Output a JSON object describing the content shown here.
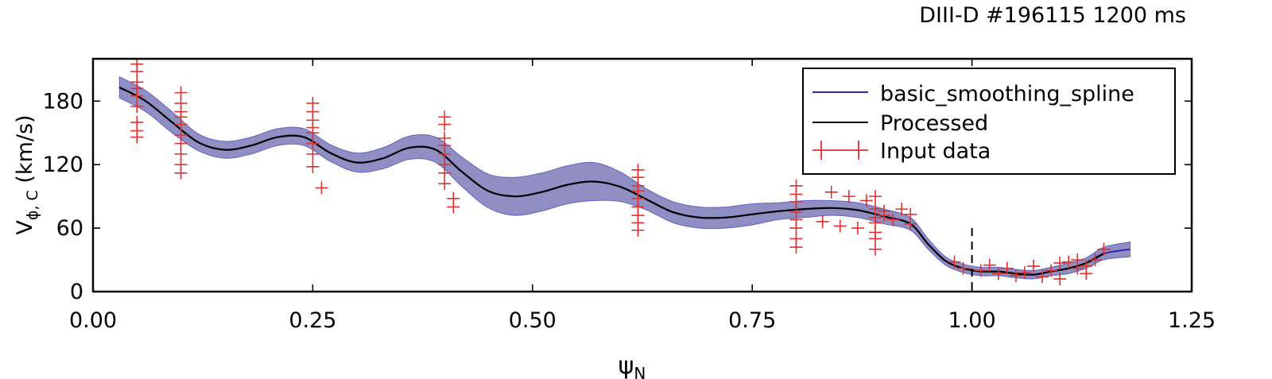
{
  "chart_data": {
    "type": "line",
    "title": "DIII-D #196115 1200 ms",
    "xlabel": "ψ",
    "xlabel_sub": "N",
    "ylabel": "V",
    "ylabel_sub": "ϕ, C",
    "ylabel_unit": " (km/s)",
    "xlim": [
      0.0,
      1.25
    ],
    "ylim": [
      0,
      220
    ],
    "xticks": [
      "0.00",
      "0.25",
      "0.50",
      "0.75",
      "1.00",
      "1.25"
    ],
    "yticks": [
      "0",
      "60",
      "120",
      "180"
    ],
    "grid": false,
    "legend_position": "top-right",
    "vline_x": 1.0,
    "colors": {
      "spline": "#2b2bb0",
      "band": "#7b7bb8",
      "processed": "#000000",
      "data": "#e03030"
    },
    "series": [
      {
        "name": "basic_smoothing_spline",
        "x": [
          0.03,
          0.06,
          0.09,
          0.12,
          0.15,
          0.18,
          0.21,
          0.24,
          0.27,
          0.3,
          0.33,
          0.36,
          0.39,
          0.42,
          0.45,
          0.48,
          0.51,
          0.54,
          0.57,
          0.6,
          0.63,
          0.66,
          0.69,
          0.72,
          0.75,
          0.78,
          0.81,
          0.84,
          0.87,
          0.9,
          0.93,
          0.95,
          0.97,
          0.99,
          1.01,
          1.03,
          1.05,
          1.07,
          1.09,
          1.11,
          1.13,
          1.15,
          1.18
        ],
        "y": [
          193,
          180,
          160,
          141,
          134,
          138,
          146,
          146,
          131,
          122,
          126,
          136,
          134,
          113,
          95,
          90,
          94,
          101,
          104,
          99,
          87,
          75,
          70,
          70,
          73,
          76,
          78,
          79,
          77,
          71,
          64,
          45,
          29,
          22,
          19,
          19,
          17,
          16,
          19,
          22,
          27,
          36,
          40
        ],
        "band": [
          10,
          10,
          10,
          8,
          8,
          8,
          8,
          8,
          8,
          9,
          10,
          11,
          12,
          14,
          16,
          18,
          18,
          18,
          18,
          14,
          10,
          10,
          10,
          10,
          10,
          8,
          8,
          7,
          7,
          7,
          6,
          5,
          4,
          4,
          4,
          4,
          4,
          4,
          4,
          5,
          5,
          6,
          7
        ]
      },
      {
        "name": "Processed",
        "x": [
          0.03,
          0.06,
          0.09,
          0.12,
          0.15,
          0.18,
          0.21,
          0.24,
          0.27,
          0.3,
          0.33,
          0.36,
          0.39,
          0.42,
          0.45,
          0.48,
          0.51,
          0.54,
          0.57,
          0.6,
          0.63,
          0.66,
          0.69,
          0.72,
          0.75,
          0.78,
          0.81,
          0.84,
          0.87,
          0.9,
          0.93,
          0.95,
          0.97,
          0.99,
          1.01,
          1.03,
          1.05,
          1.07,
          1.09,
          1.11,
          1.13,
          1.15
        ],
        "y": [
          193,
          180,
          160,
          141,
          134,
          138,
          146,
          146,
          131,
          122,
          126,
          136,
          134,
          113,
          95,
          90,
          94,
          101,
          104,
          99,
          87,
          75,
          70,
          70,
          73,
          76,
          78,
          79,
          77,
          71,
          64,
          45,
          29,
          22,
          19,
          19,
          17,
          16,
          19,
          22,
          27,
          36
        ]
      },
      {
        "name": "Input data",
        "points": [
          [
            0.05,
            215
          ],
          [
            0.05,
            208
          ],
          [
            0.05,
            198
          ],
          [
            0.05,
            192
          ],
          [
            0.05,
            185
          ],
          [
            0.05,
            175
          ],
          [
            0.05,
            160
          ],
          [
            0.05,
            152
          ],
          [
            0.05,
            146
          ],
          [
            0.1,
            188
          ],
          [
            0.1,
            178
          ],
          [
            0.1,
            170
          ],
          [
            0.1,
            165
          ],
          [
            0.1,
            158
          ],
          [
            0.1,
            148
          ],
          [
            0.1,
            140
          ],
          [
            0.1,
            130
          ],
          [
            0.1,
            120
          ],
          [
            0.1,
            112
          ],
          [
            0.25,
            178
          ],
          [
            0.25,
            170
          ],
          [
            0.25,
            162
          ],
          [
            0.25,
            155
          ],
          [
            0.25,
            150
          ],
          [
            0.25,
            140
          ],
          [
            0.25,
            130
          ],
          [
            0.25,
            118
          ],
          [
            0.26,
            98
          ],
          [
            0.4,
            165
          ],
          [
            0.4,
            158
          ],
          [
            0.4,
            145
          ],
          [
            0.4,
            138
          ],
          [
            0.4,
            130
          ],
          [
            0.4,
            120
          ],
          [
            0.4,
            112
          ],
          [
            0.4,
            102
          ],
          [
            0.41,
            88
          ],
          [
            0.41,
            80
          ],
          [
            0.62,
            115
          ],
          [
            0.62,
            108
          ],
          [
            0.62,
            100
          ],
          [
            0.62,
            95
          ],
          [
            0.62,
            88
          ],
          [
            0.62,
            80
          ],
          [
            0.62,
            72
          ],
          [
            0.62,
            65
          ],
          [
            0.62,
            58
          ],
          [
            0.8,
            100
          ],
          [
            0.8,
            92
          ],
          [
            0.8,
            85
          ],
          [
            0.8,
            75
          ],
          [
            0.8,
            68
          ],
          [
            0.8,
            60
          ],
          [
            0.8,
            50
          ],
          [
            0.8,
            42
          ],
          [
            0.84,
            94
          ],
          [
            0.86,
            90
          ],
          [
            0.88,
            86
          ],
          [
            0.83,
            66
          ],
          [
            0.85,
            62
          ],
          [
            0.87,
            60
          ],
          [
            0.89,
            56
          ],
          [
            0.89,
            90
          ],
          [
            0.89,
            78
          ],
          [
            0.89,
            70
          ],
          [
            0.89,
            65
          ],
          [
            0.89,
            50
          ],
          [
            0.89,
            40
          ],
          [
            0.9,
            76
          ],
          [
            0.9,
            72
          ],
          [
            0.91,
            68
          ],
          [
            0.92,
            78
          ],
          [
            0.93,
            73
          ],
          [
            0.93,
            64
          ],
          [
            0.98,
            28
          ],
          [
            0.99,
            22
          ],
          [
            1.01,
            20
          ],
          [
            1.02,
            25
          ],
          [
            1.03,
            17
          ],
          [
            1.04,
            22
          ],
          [
            1.05,
            15
          ],
          [
            1.06,
            18
          ],
          [
            1.07,
            24
          ],
          [
            1.08,
            14
          ],
          [
            1.09,
            20
          ],
          [
            1.1,
            12
          ],
          [
            1.1,
            27
          ],
          [
            1.11,
            28
          ],
          [
            1.12,
            22
          ],
          [
            1.12,
            30
          ],
          [
            1.13,
            24
          ],
          [
            1.13,
            17
          ],
          [
            1.14,
            30
          ],
          [
            1.15,
            40
          ]
        ]
      }
    ]
  }
}
